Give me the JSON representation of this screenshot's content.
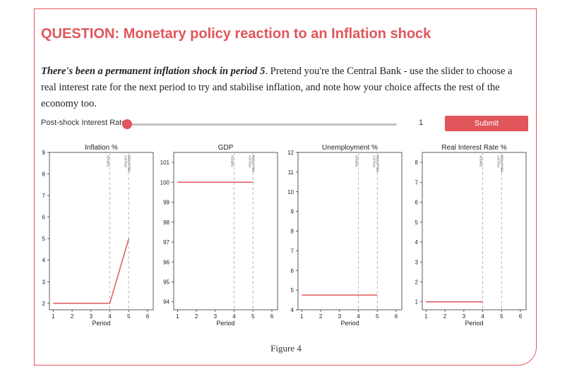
{
  "title": "QUESTION: Monetary policy reaction to an Inflation shock",
  "prompt": {
    "bold_text": "There's been a permanent inflation shock in period 5",
    "rest_text": ". Pretend you're the Central Bank - use the slider to choose a real interest rate for the next period to try and stabilise inflation, and note how your choice affects the rest of the economy too."
  },
  "slider": {
    "label": "Post-shock Interest Rate",
    "value": "1"
  },
  "submit_label": "Submit",
  "caption": "Figure 4",
  "colors": {
    "accent": "#e0565b",
    "line": "#e0565b",
    "vline": "#b8b8b8"
  },
  "chart_data": [
    {
      "type": "line",
      "title": "Inflation %",
      "xlabel": "Period",
      "ylabel": "",
      "xlim": [
        0.8,
        6.3
      ],
      "ylim": [
        1.7,
        9
      ],
      "xticks": [
        1,
        2,
        3,
        4,
        5,
        6
      ],
      "yticks": [
        2,
        3,
        4,
        5,
        6,
        7,
        8,
        9
      ],
      "series": [
        {
          "x": [
            1,
            4,
            5
          ],
          "y": [
            2,
            2,
            5
          ]
        }
      ],
      "vlines": [
        {
          "x": 4,
          "label": "SHOCK"
        },
        {
          "x": 5,
          "label": "POLICY REACTION"
        }
      ]
    },
    {
      "type": "line",
      "title": "GDP",
      "xlabel": "Period",
      "ylabel": "",
      "xlim": [
        0.8,
        6.3
      ],
      "ylim": [
        93.6,
        101.5
      ],
      "xticks": [
        1,
        2,
        3,
        4,
        5,
        6
      ],
      "yticks": [
        94,
        95,
        96,
        97,
        98,
        99,
        100,
        101
      ],
      "series": [
        {
          "x": [
            1,
            5
          ],
          "y": [
            100,
            100
          ]
        }
      ],
      "vlines": [
        {
          "x": 4,
          "label": "SHOCK"
        },
        {
          "x": 5,
          "label": "POLICY REACTION"
        }
      ]
    },
    {
      "type": "line",
      "title": "Unemployment %",
      "xlabel": "Period",
      "ylabel": "",
      "xlim": [
        0.8,
        6.3
      ],
      "ylim": [
        4,
        12
      ],
      "xticks": [
        1,
        2,
        3,
        4,
        5,
        6
      ],
      "yticks": [
        4,
        5,
        6,
        7,
        8,
        9,
        10,
        11,
        12
      ],
      "series": [
        {
          "x": [
            1,
            5
          ],
          "y": [
            4.75,
            4.75
          ]
        }
      ],
      "vlines": [
        {
          "x": 4,
          "label": "SHOCK"
        },
        {
          "x": 5,
          "label": "POLICY REACTION"
        }
      ]
    },
    {
      "type": "line",
      "title": "Real Interest Rate %",
      "xlabel": "Period",
      "ylabel": "",
      "xlim": [
        0.8,
        6.3
      ],
      "ylim": [
        0.6,
        8.5
      ],
      "xticks": [
        1,
        2,
        3,
        4,
        5,
        6
      ],
      "yticks": [
        1,
        2,
        3,
        4,
        5,
        6,
        7,
        8
      ],
      "series": [
        {
          "x": [
            1,
            4
          ],
          "y": [
            1,
            1
          ]
        }
      ],
      "vlines": [
        {
          "x": 4,
          "label": "SHOCK"
        },
        {
          "x": 5,
          "label": "POLICY REACTION"
        }
      ]
    }
  ]
}
